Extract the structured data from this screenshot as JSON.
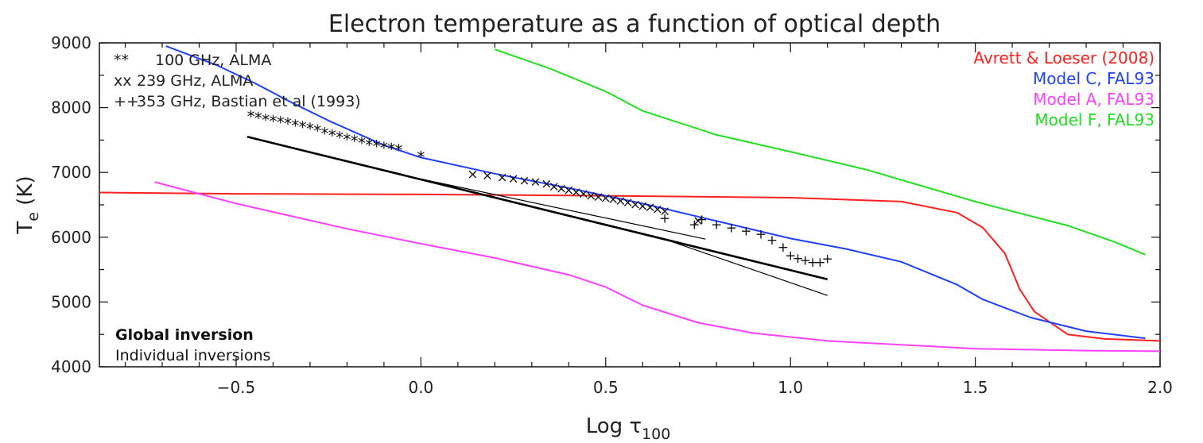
{
  "chart_data": {
    "type": "line",
    "title": "Electron temperature as a function of optical depth",
    "xlabel": "Log τ",
    "xlabel_subscript": "100",
    "ylabel": "T",
    "ylabel_subscript": "e",
    "ylabel_unit": " (K)",
    "xlim": [
      -0.87,
      2.0
    ],
    "ylim": [
      4000,
      9000
    ],
    "xticks": [
      -0.5,
      0.0,
      0.5,
      1.0,
      1.5,
      2.0
    ],
    "xtick_labels": [
      "−0.5",
      "0.0",
      "0.5",
      "1.0",
      "1.5",
      "2.0"
    ],
    "yticks": [
      4000,
      5000,
      6000,
      7000,
      8000,
      9000
    ],
    "ytick_labels": [
      "4000",
      "5000",
      "6000",
      "7000",
      "8000",
      "9000"
    ],
    "grid": false,
    "legend_models": [
      {
        "label": "Avrett & Loeser (2008)",
        "color": "#ff2020"
      },
      {
        "label": "Model C, FAL93",
        "color": "#2040ff"
      },
      {
        "label": "Model A, FAL93",
        "color": "#ff40ff"
      },
      {
        "label": "Model F, FAL93",
        "color": "#20e020"
      }
    ],
    "legend_points": [
      {
        "symbol": "**",
        "label": "100 GHz, ALMA"
      },
      {
        "symbol": "xx",
        "label": "239 GHz, ALMA"
      },
      {
        "symbol": "++",
        "label": "353 GHz, Bastian et al (1993)"
      }
    ],
    "legend_inversions": [
      {
        "label": "Global inversion",
        "bold": true
      },
      {
        "label": "Individual inversions",
        "bold": false
      }
    ],
    "series": [
      {
        "name": "Avrett & Loeser (2008)",
        "color": "#ff2020",
        "x": [
          -0.87,
          -0.5,
          0.0,
          0.5,
          1.0,
          1.3,
          1.45,
          1.52,
          1.58,
          1.62,
          1.66,
          1.75,
          1.85,
          2.0
        ],
        "y": [
          6690,
          6670,
          6660,
          6640,
          6610,
          6550,
          6380,
          6150,
          5750,
          5200,
          4850,
          4500,
          4430,
          4400
        ]
      },
      {
        "name": "Model C, FAL93",
        "color": "#2040ff",
        "x": [
          -0.69,
          -0.55,
          -0.45,
          -0.35,
          -0.25,
          -0.1,
          0.0,
          0.2,
          0.4,
          0.6,
          0.8,
          1.0,
          1.15,
          1.3,
          1.45,
          1.52,
          1.65,
          1.8,
          1.96
        ],
        "y": [
          8950,
          8650,
          8380,
          8080,
          7800,
          7420,
          7230,
          6980,
          6760,
          6520,
          6250,
          5980,
          5820,
          5620,
          5270,
          5040,
          4760,
          4550,
          4440
        ]
      },
      {
        "name": "Model A, FAL93",
        "color": "#ff40ff",
        "x": [
          -0.72,
          -0.5,
          -0.2,
          0.0,
          0.2,
          0.4,
          0.5,
          0.6,
          0.75,
          0.9,
          1.1,
          1.5,
          1.8,
          2.0
        ],
        "y": [
          6850,
          6520,
          6130,
          5900,
          5680,
          5420,
          5230,
          4950,
          4680,
          4520,
          4400,
          4280,
          4250,
          4240
        ]
      },
      {
        "name": "Model F, FAL93",
        "color": "#20e020",
        "x": [
          0.2,
          0.35,
          0.5,
          0.6,
          0.8,
          1.0,
          1.2,
          1.35,
          1.5,
          1.6,
          1.75,
          1.88,
          1.96
        ],
        "y": [
          8900,
          8600,
          8250,
          7950,
          7580,
          7320,
          7050,
          6800,
          6550,
          6400,
          6180,
          5920,
          5730
        ]
      },
      {
        "name": "Global inversion",
        "color": "#000000",
        "width": 2.6,
        "x": [
          -0.47,
          1.1
        ],
        "y": [
          7550,
          5350
        ]
      },
      {
        "name": "Individual inversions",
        "color": "#000000",
        "width": 1.2,
        "segments": [
          {
            "x": [
              0.0,
              0.77
            ],
            "y": [
              6900,
              5970
            ]
          },
          {
            "x": [
              0.67,
              1.1
            ],
            "y": [
              5950,
              5100
            ]
          }
        ]
      }
    ],
    "points": [
      {
        "name": "100 GHz, ALMA",
        "symbol": "*",
        "x": [
          -0.46,
          -0.44,
          -0.42,
          -0.4,
          -0.38,
          -0.36,
          -0.34,
          -0.32,
          -0.3,
          -0.28,
          -0.26,
          -0.24,
          -0.22,
          -0.2,
          -0.18,
          -0.16,
          -0.14,
          -0.12,
          -0.1,
          -0.08,
          -0.06,
          0.0
        ],
        "y": [
          7870,
          7850,
          7820,
          7800,
          7780,
          7760,
          7730,
          7710,
          7680,
          7650,
          7610,
          7580,
          7550,
          7520,
          7490,
          7460,
          7430,
          7410,
          7390,
          7370,
          7350,
          7250
        ]
      },
      {
        "name": "239 GHz, ALMA",
        "symbol": "x",
        "x": [
          0.14,
          0.18,
          0.22,
          0.25,
          0.28,
          0.31,
          0.34,
          0.36,
          0.38,
          0.4,
          0.42,
          0.44,
          0.46,
          0.48,
          0.5,
          0.52,
          0.54,
          0.56,
          0.58,
          0.6,
          0.62,
          0.64,
          0.66,
          0.75
        ],
        "y": [
          6980,
          6960,
          6930,
          6910,
          6880,
          6860,
          6830,
          6790,
          6760,
          6730,
          6700,
          6680,
          6650,
          6630,
          6610,
          6590,
          6570,
          6540,
          6510,
          6490,
          6470,
          6440,
          6410,
          6260
        ]
      },
      {
        "name": "353 GHz, Bastian et al (1993)",
        "symbol": "+",
        "x": [
          0.66,
          0.74,
          0.76,
          0.8,
          0.84,
          0.88,
          0.92,
          0.95,
          0.98,
          1.0,
          1.02,
          1.04,
          1.06,
          1.08,
          1.1
        ],
        "y": [
          6300,
          6200,
          6280,
          6200,
          6150,
          6100,
          6050,
          5960,
          5850,
          5720,
          5680,
          5650,
          5620,
          5620,
          5670
        ]
      }
    ]
  }
}
